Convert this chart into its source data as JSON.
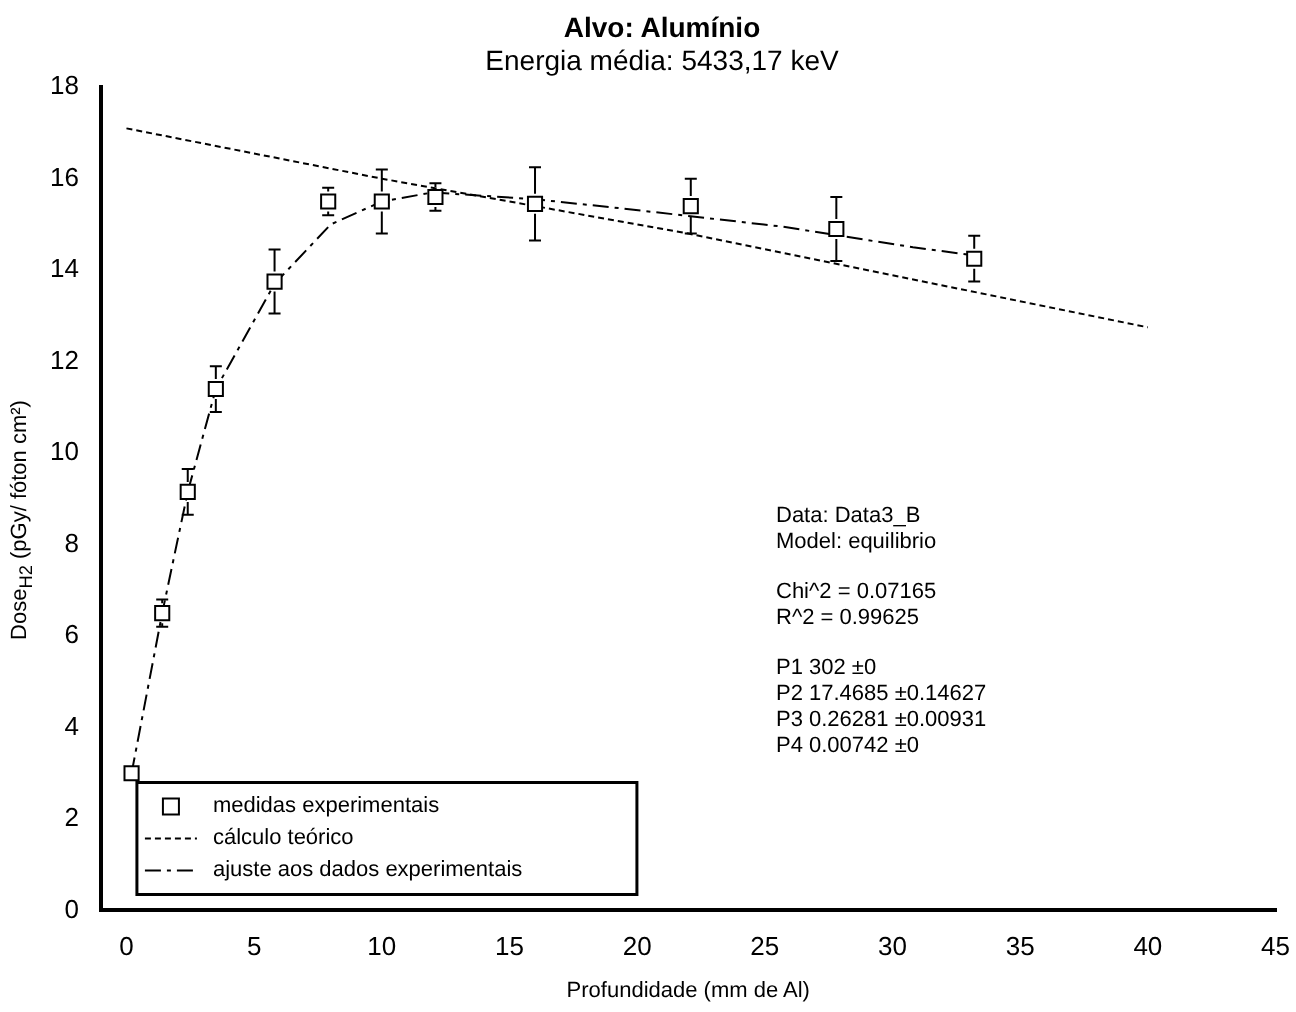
{
  "chart_data": {
    "type": "scatter",
    "title": "Alvo: Alumínio",
    "subtitle": "Energia média: 5433,17 keV",
    "xlabel": "Profundidade (mm de Al)",
    "ylabel": "Dose$_{H2}$ (pGy/ fóton cm²)",
    "xlim": [
      -1,
      45
    ],
    "xticks": [
      0,
      5,
      10,
      15,
      20,
      25,
      30,
      35,
      40,
      45
    ],
    "ylim": [
      0,
      18
    ],
    "yticks": [
      0,
      2,
      4,
      6,
      8,
      10,
      12,
      14,
      16,
      18
    ],
    "grid": false,
    "legend": "bottom left",
    "series": [
      {
        "name": "medidas experimentais",
        "color": "#000000",
        "marker": "square",
        "x": [
          0.2,
          1.4,
          2.4,
          3.5,
          5.8,
          7.9,
          10,
          12.1,
          16,
          22.1,
          27.8,
          33.2
        ],
        "values": [
          3.0,
          6.5,
          9.15,
          11.4,
          13.75,
          15.5,
          15.5,
          15.6,
          15.45,
          15.4,
          14.9,
          14.25
        ],
        "errors": [
          null,
          0.3,
          0.5,
          0.5,
          0.7,
          0.3,
          0.7,
          0.3,
          0.8,
          0.6,
          0.7,
          0.5
        ]
      },
      {
        "name": "cálculo teórico",
        "type": "line",
        "color": "#000000",
        "marker": "none",
        "line_style": "dotted",
        "x": [
          0,
          10,
          22,
          40
        ],
        "values": [
          17.1,
          16.0,
          14.8,
          12.75
        ]
      },
      {
        "name": "ajuste aos dados experimentais",
        "type": "line",
        "color": "#000000",
        "marker": "none",
        "line_style": "dashed",
        "x": [
          0.2,
          1.4,
          2.4,
          3.5,
          5.8,
          8,
          10,
          12,
          16,
          19.4,
          25.7,
          30.8,
          33.5
        ],
        "values": [
          3.0,
          6.5,
          9.15,
          11.4,
          13.7,
          15.0,
          15.5,
          15.7,
          15.55,
          15.35,
          14.95,
          14.5,
          14.3
        ]
      }
    ],
    "annotations": [
      "Data: Data3_B",
      "Model: equilibrio",
      "Chi^2 = 0.07165",
      "R^2 = 0.99625",
      "P1 302 ±0",
      "P2 17.4685 ±0.14627",
      "P3 0.26281 ±0.00931",
      "P4 0.00742 ±0"
    ]
  }
}
